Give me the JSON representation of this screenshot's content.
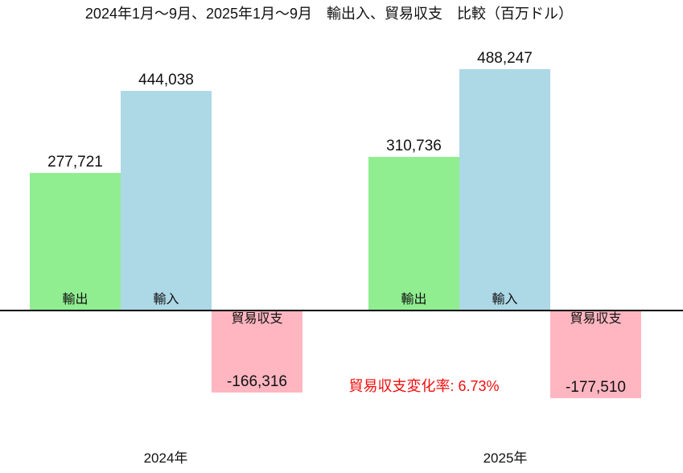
{
  "chart_data": {
    "type": "bar",
    "title": "2024年1月〜9月、2025年1月〜9月　輸出入、貿易収支　比較（百万ドル）",
    "unit": "百万ドル",
    "categories": [
      "2024年",
      "2025年"
    ],
    "series": [
      {
        "name": "輸出",
        "color": "#90EE90",
        "values": [
          277721,
          310736
        ],
        "labels": [
          "277,721",
          "310,736"
        ]
      },
      {
        "name": "輸入",
        "color": "#ADD8E6",
        "values": [
          444038,
          488247
        ],
        "labels": [
          "444,038",
          "488,247"
        ]
      },
      {
        "name": "貿易収支",
        "color": "#FFB6C1",
        "values": [
          -166316,
          -177510
        ],
        "labels": [
          "-166,316",
          "-177,510"
        ]
      }
    ],
    "annotation": {
      "text": "貿易収支変化率: 6.73%",
      "color": "#f20d0d"
    },
    "xlabel": "",
    "ylabel": "",
    "ylim": [
      -200000,
      520000
    ],
    "grid": false,
    "legend": "labels drawn inside bars",
    "axis_color": "#000000",
    "background": "#ffffff"
  }
}
